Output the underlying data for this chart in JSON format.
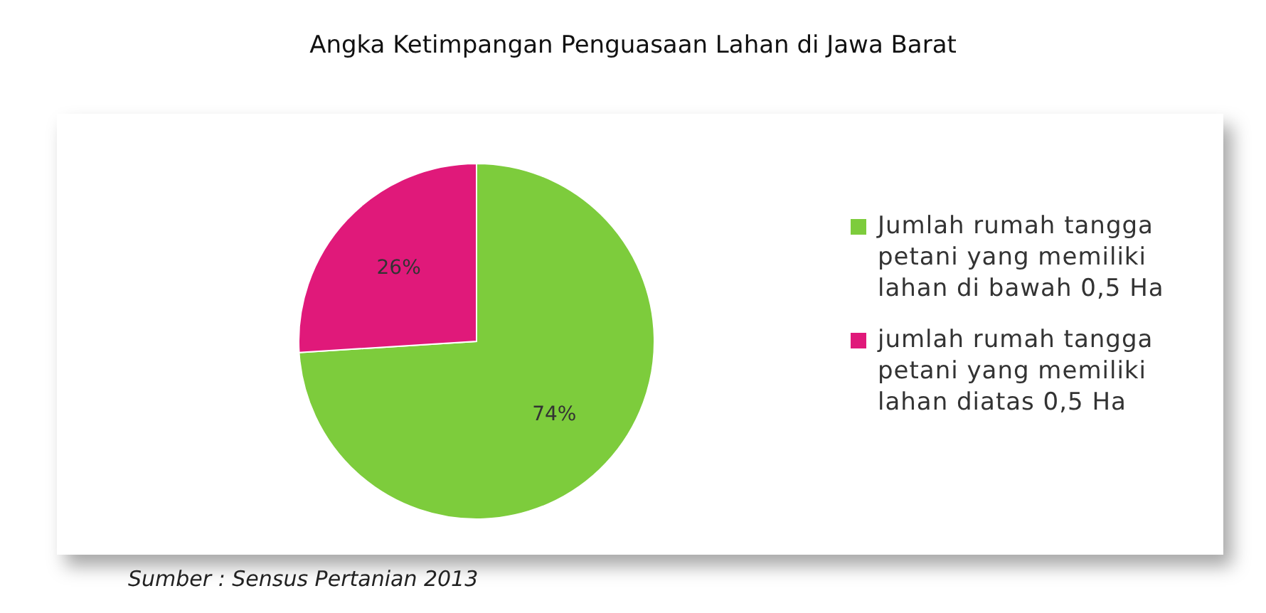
{
  "chart_data": {
    "type": "pie",
    "title": "Angka Ketimpangan Penguasaan Lahan di Jawa Barat",
    "categories": [
      "Jumlah rumah tangga petani yang memiliki lahan di bawah 0,5 Ha",
      "jumlah rumah tangga petani yang memiliki lahan diatas 0,5 Ha"
    ],
    "values": [
      74,
      26
    ],
    "colors": [
      "#7dcc3c",
      "#e0197a"
    ],
    "value_labels": [
      "74%",
      "26%"
    ],
    "legend": "right",
    "annotations": [
      "Sumber : Sensus Pertanian 2013"
    ]
  }
}
